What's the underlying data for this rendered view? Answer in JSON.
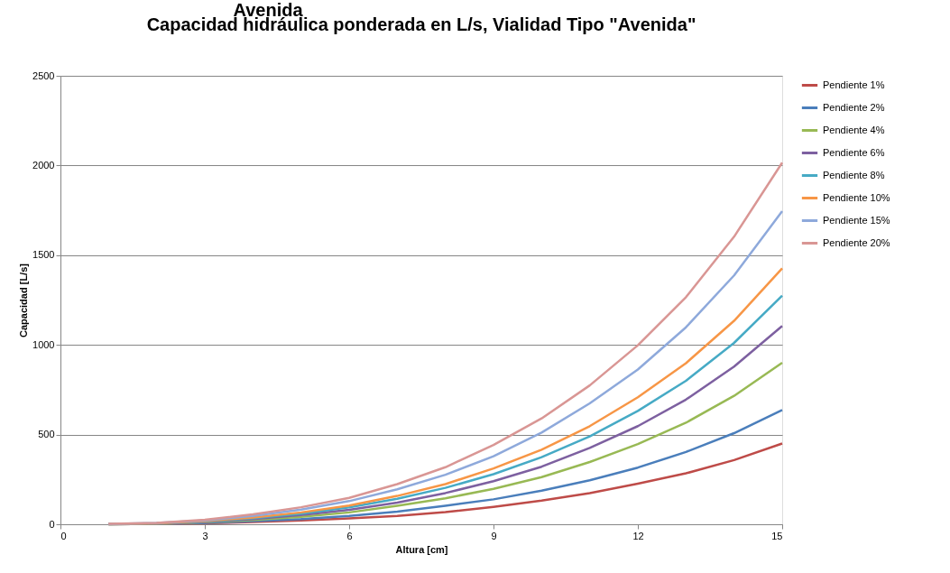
{
  "chart_data": {
    "type": "line",
    "title": "Capacidad hidráulica ponderada en L/s, Vialidad Tipo \"Avenida\"",
    "xlabel": "Altura [cm]",
    "ylabel": "Capacidad [L/s]",
    "annotations": [
      "Avenida"
    ],
    "x": [
      1,
      2,
      3,
      4,
      5,
      6,
      7,
      8,
      9,
      10,
      11,
      12,
      13,
      14,
      15
    ],
    "xlim": [
      0,
      15
    ],
    "xticks": [
      0,
      3,
      6,
      9,
      12,
      15
    ],
    "ylim": [
      0,
      2500
    ],
    "yticks": [
      0,
      500,
      {
        "value": 1000,
        "label": "1000"
      },
      {
        "value": 1500,
        "label": "1500"
      },
      {
        "value": 2000,
        "label": "2000"
      },
      {
        "value": 2500,
        "label": "2500"
      }
    ],
    "grid": "y",
    "legend": "right",
    "marker": "none",
    "line_style": "solid",
    "series": [
      {
        "name": "Pendiente 1%",
        "color": "#be4b48",
        "values": [
          0,
          2,
          5,
          12,
          21,
          33,
          47,
          68,
          97,
          132,
          174,
          226,
          284,
          358,
          450
        ]
      },
      {
        "name": "Pendiente 2%",
        "color": "#4a7ebb",
        "values": [
          0,
          2,
          8,
          17,
          29,
          47,
          71,
          103,
          139,
          187,
          245,
          316,
          403,
          508,
          637
        ]
      },
      {
        "name": "Pendiente 4%",
        "color": "#98b954",
        "values": [
          0,
          3,
          11,
          24,
          41,
          66,
          103,
          145,
          197,
          263,
          347,
          447,
          566,
          716,
          900
        ]
      },
      {
        "name": "Pendiente 6%",
        "color": "#7d60a0",
        "values": [
          1,
          4,
          13,
          29,
          51,
          81,
          121,
          174,
          240,
          321,
          426,
          547,
          695,
          879,
          1105
        ]
      },
      {
        "name": "Pendiente 8%",
        "color": "#46aac5",
        "values": [
          1,
          5,
          15,
          34,
          59,
          94,
          142,
          203,
          279,
          374,
          490,
          632,
          800,
          1011,
          1274
        ]
      },
      {
        "name": "Pendiente 10%",
        "color": "#f79646",
        "values": [
          1,
          5,
          17,
          38,
          66,
          104,
          158,
          224,
          311,
          416,
          547,
          708,
          898,
          1134,
          1427
        ]
      },
      {
        "name": "Pendiente 15%",
        "color": "#8ea9db",
        "values": [
          1,
          7,
          21,
          47,
          82,
          129,
          195,
          276,
          379,
          511,
          674,
          863,
          1098,
          1387,
          1745
        ]
      },
      {
        "name": "Pendiente 20%",
        "color": "#d99694",
        "values": [
          2,
          8,
          25,
          55,
          95,
          147,
          224,
          318,
          442,
          590,
          774,
          998,
          1266,
          1603,
          2016
        ]
      }
    ]
  }
}
